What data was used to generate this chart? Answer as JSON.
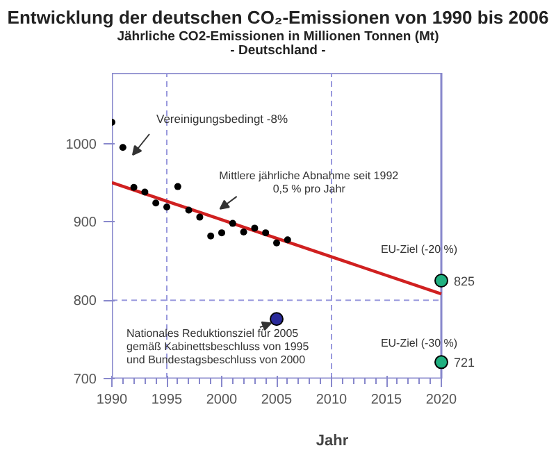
{
  "chart_data": {
    "type": "scatter",
    "title": "Entwicklung der deutschen CO₂-Emissionen von 1990 bis 2006",
    "subtitle": "Jährliche CO2-Emissionen in Millionen Tonnen (Mt)\n- Deutschland -",
    "xlabel": "Jahr",
    "xlim": [
      1990,
      2020
    ],
    "xticks": [
      1990,
      1995,
      2000,
      2005,
      2010,
      2015,
      2020
    ],
    "ylim": [
      700,
      1090
    ],
    "yticks": [
      700,
      800,
      900,
      1000
    ],
    "grid": false,
    "marker": "circle",
    "ref_lines": [
      {
        "axis": "x",
        "value": 1995,
        "label": null,
        "color": "#9999dd",
        "line_style": "dashed"
      },
      {
        "axis": "x",
        "value": 2010,
        "label": null,
        "color": "#9999dd",
        "line_style": "dashed"
      },
      {
        "axis": "y",
        "value": 800,
        "label": null,
        "color": "#9999dd",
        "line_style": "dashed"
      }
    ],
    "series": [
      {
        "color": "#000000",
        "x": [
          1990,
          1991,
          1992,
          1993,
          1994,
          1995,
          1996,
          1997,
          1998,
          1999,
          2000,
          2001,
          2002,
          2003,
          2004,
          2005,
          2006
        ],
        "values": [
          1027,
          995,
          944,
          938,
          924,
          919,
          945,
          915,
          906,
          882,
          886,
          898,
          887,
          892,
          886,
          873,
          877
        ]
      },
      {
        "type": "line",
        "marker": "none",
        "color": "#d02020",
        "x": [
          1990,
          2020
        ],
        "values": [
          950,
          808
        ]
      },
      {
        "color": "#20b080",
        "x": [
          2020,
          2020
        ],
        "values": [
          825,
          721
        ],
        "value_labels": [
          "825",
          "721"
        ]
      },
      {
        "color": "#2a2a9a",
        "x": [
          2005
        ],
        "values": [
          776
        ]
      }
    ],
    "annotations": [
      "Vereinigungsbedingt -8%",
      {
        "text": "Mittlere jährliche Abnahme seit 1992\n0,5 % pro Jahr",
        "x": 1999.6,
        "y": 913
      },
      {
        "text": "EU-Ziel (-20 %)",
        "x": 2020,
        "y": 825
      },
      {
        "text": "EU-Ziel (-30 %)",
        "x": 2020,
        "y": 721
      },
      {
        "text": "Nationales Reduktionsziel für 2005\ngemäß Kabinettsbeschluss von 1995\nund Bundestagsbeschluss von 2000",
        "x": 2005,
        "y": 776
      }
    ]
  }
}
